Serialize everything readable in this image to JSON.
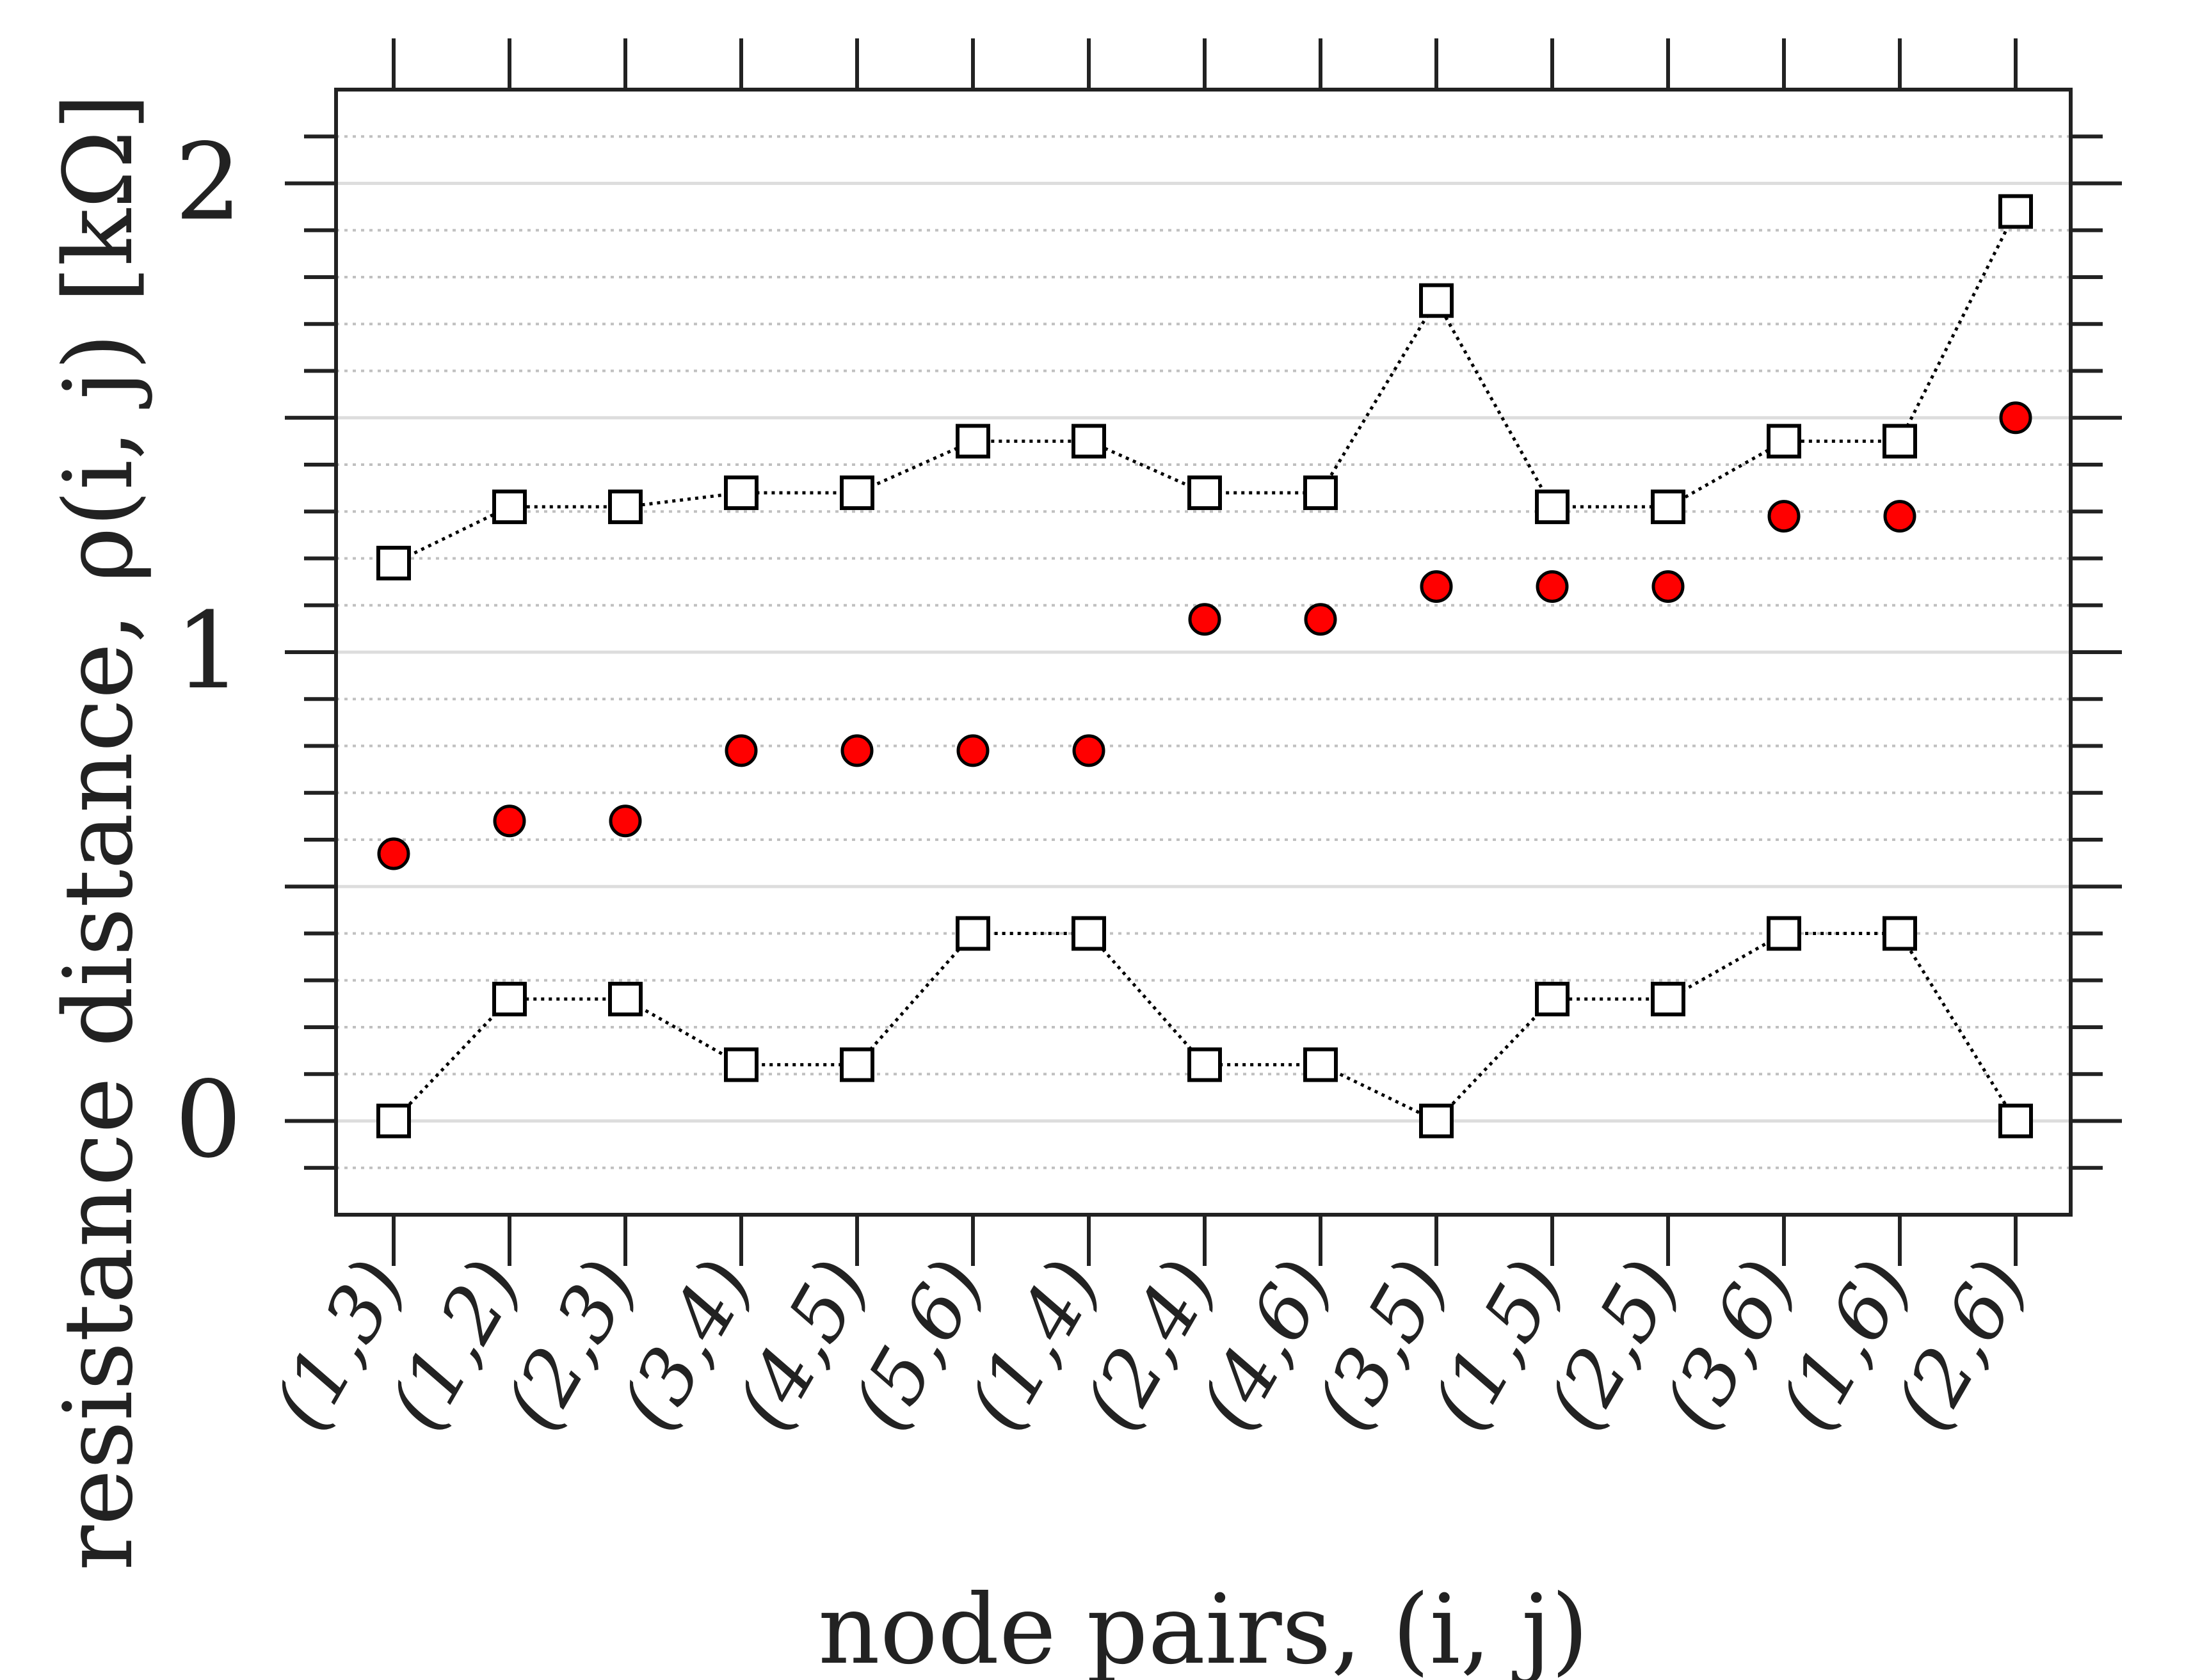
{
  "chart_data": {
    "type": "scatter",
    "xlabel": "node pairs, (i, j)",
    "ylabel": "resistance distance, ρ(i, j) [kΩ]",
    "categories": [
      "(1,3)",
      "(1,2)",
      "(2,3)",
      "(3,4)",
      "(4,5)",
      "(5,6)",
      "(1,4)",
      "(2,4)",
      "(4,6)",
      "(3,5)",
      "(1,5)",
      "(2,5)",
      "(3,6)",
      "(1,6)",
      "(2,6)"
    ],
    "ylim": [
      -0.2,
      2.2
    ],
    "yticks": [
      0,
      1,
      2
    ],
    "ytick_labels": [
      "0",
      "1",
      "2"
    ],
    "grid": true,
    "series": [
      {
        "marker": "filled-circle",
        "values": [
          0.57,
          0.64,
          0.64,
          0.79,
          0.79,
          0.79,
          0.79,
          1.07,
          1.07,
          1.14,
          1.14,
          1.14,
          1.29,
          1.29,
          1.5
        ]
      },
      {
        "marker": "open-square",
        "line": "dotted",
        "values": [
          1.19,
          1.31,
          1.31,
          1.34,
          1.34,
          1.45,
          1.45,
          1.34,
          1.34,
          1.75,
          1.31,
          1.31,
          1.45,
          1.45,
          1.94
        ]
      },
      {
        "marker": "open-square",
        "line": "dotted",
        "values": [
          0.0,
          0.26,
          0.26,
          0.12,
          0.12,
          0.4,
          0.4,
          0.12,
          0.12,
          0.0,
          0.26,
          0.26,
          0.4,
          0.4,
          0.0
        ]
      }
    ],
    "colors": {
      "filled_marker": "#ff0000",
      "filled_marker_edge": "#000000",
      "open_marker_fill": "#ffffff",
      "open_marker_edge": "#000000",
      "line": "#000000",
      "axis": "#222222",
      "major_grid": "#dddddd",
      "minor_grid": "#c0c0c0"
    }
  }
}
